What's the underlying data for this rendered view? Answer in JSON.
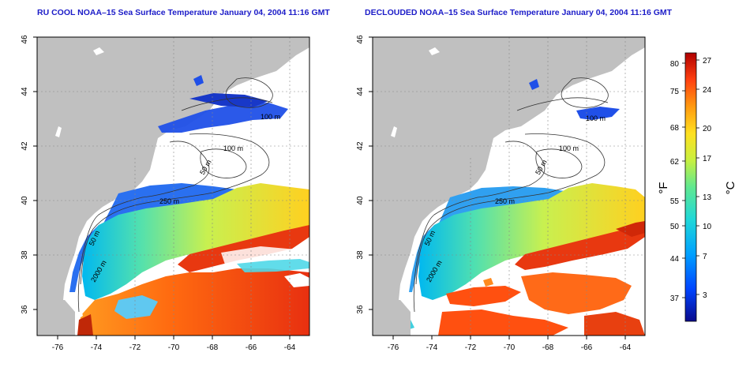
{
  "maps": [
    {
      "title": "RU COOL NOAA–15 Sea Surface Temperature January 04, 2004 11:16 GMT",
      "xticks": [
        "-76",
        "-74",
        "-72",
        "-70",
        "-68",
        "-66",
        "-64"
      ],
      "yticks": [
        "36",
        "38",
        "40",
        "42",
        "44",
        "46"
      ],
      "contour_labels": [
        "100 m",
        "50 m",
        "250 m",
        "50 m",
        "2000 m",
        "100 m",
        "50 m"
      ]
    },
    {
      "title": "DECLOUDED NOAA–15 Sea Surface Temperature January 04, 2004 11:16 GMT",
      "xticks": [
        "-76",
        "-74",
        "-72",
        "-70",
        "-68",
        "-66",
        "-64"
      ],
      "yticks": [
        "36",
        "38",
        "40",
        "42",
        "44",
        "46"
      ],
      "contour_labels": [
        "100 m",
        "50 m",
        "250 m",
        "50 m",
        "2000 m",
        "100 m",
        "50 m"
      ]
    }
  ],
  "colorbar": {
    "fahrenheit_label": "°F",
    "celsius_label": "°C",
    "fahrenheit_ticks": [
      "80",
      "75",
      "68",
      "62",
      "55",
      "50",
      "44",
      "37"
    ],
    "celsius_ticks": [
      "27",
      "24",
      "20",
      "17",
      "13",
      "10",
      "7",
      "3"
    ],
    "colors": [
      "#0a0a8c",
      "#0044ff",
      "#00a0ff",
      "#20d8d8",
      "#60e890",
      "#c8f040",
      "#ffe020",
      "#ff9a10",
      "#ff4010",
      "#b00000"
    ]
  },
  "colors": {
    "land": "#c0c0c0",
    "cloud": "#ffffff",
    "title": "#1c1cc8"
  }
}
